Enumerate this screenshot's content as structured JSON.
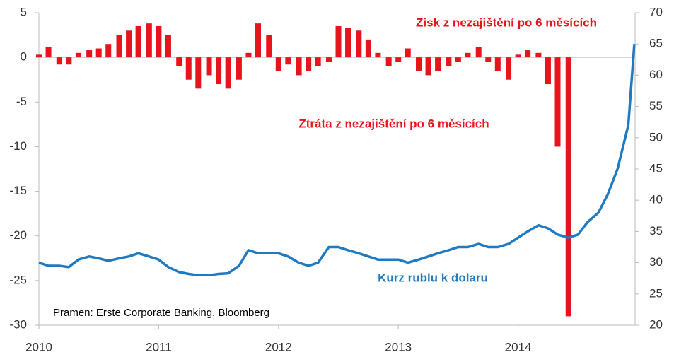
{
  "chart_data": {
    "type": "bar-line",
    "annotations": [
      "Zisk z nezajištění po 6 měsících",
      "Ztráta z nezajištění po 6 měsících",
      "Pramen: Erste Corporate Banking, Bloomberg"
    ],
    "x": [
      2010,
      2010.08,
      2010.17,
      2010.25,
      2010.33,
      2010.42,
      2010.5,
      2010.58,
      2010.67,
      2010.75,
      2010.83,
      2010.92,
      2011,
      2011.08,
      2011.17,
      2011.25,
      2011.33,
      2011.42,
      2011.5,
      2011.58,
      2011.67,
      2011.75,
      2011.83,
      2011.92,
      2012,
      2012.08,
      2012.17,
      2012.25,
      2012.33,
      2012.42,
      2012.5,
      2012.58,
      2012.67,
      2012.75,
      2012.83,
      2012.92,
      2013,
      2013.08,
      2013.17,
      2013.25,
      2013.33,
      2013.42,
      2013.5,
      2013.58,
      2013.67,
      2013.75,
      2013.83,
      2013.92,
      2014,
      2014.08,
      2014.17,
      2014.25,
      2014.33,
      2014.42,
      2014.5,
      2014.58,
      2014.67,
      2014.75,
      2014.83,
      2014.92,
      2014.97
    ],
    "series": [
      {
        "color": "#e8141b",
        "values": [
          0.3,
          1.2,
          -0.8,
          -0.8,
          0.5,
          0.8,
          1,
          1.5,
          2.5,
          3,
          3.5,
          3.8,
          3.5,
          2.5,
          -1,
          -2.5,
          -3.5,
          -2,
          -3,
          -3.5,
          -2.5,
          0.5,
          3.8,
          2.5,
          -1.5,
          -0.8,
          -2,
          -1.5,
          -1,
          -0.5,
          3.5,
          3.3,
          3,
          2,
          0.5,
          -1,
          -0.5,
          1,
          -1.5,
          -2,
          -1.5,
          -1,
          -0.5,
          0.5,
          1.2,
          -0.5,
          -1.5,
          -2.5,
          0.3,
          0.8,
          0.5,
          -3,
          -10,
          -29,
          null,
          null,
          null,
          null,
          null,
          null,
          null
        ]
      },
      {
        "name": "Kurz rublu k dolaru",
        "color": "#1f7bc1",
        "axis": "y2",
        "values": [
          30,
          29.5,
          29.5,
          29.3,
          30.5,
          31,
          30.7,
          30.3,
          30.7,
          31,
          31.5,
          31,
          30.5,
          29.3,
          28.5,
          28.2,
          28,
          28,
          28.2,
          28.3,
          29.5,
          32,
          31.5,
          31.5,
          31.5,
          31,
          30,
          29.5,
          30,
          32.5,
          32.5,
          32,
          31.5,
          31,
          30.5,
          30.5,
          30.5,
          30,
          30.5,
          31,
          31.5,
          32,
          32.5,
          32.5,
          33,
          32.5,
          32.5,
          33,
          34,
          35,
          36,
          35.5,
          34.5,
          34,
          34.5,
          36.5,
          38,
          41,
          45,
          52,
          65
        ]
      }
    ],
    "xlim": [
      2010,
      2015
    ],
    "xticks": [
      2010,
      2011,
      2012,
      2013,
      2014
    ],
    "ylim": [
      -30,
      5
    ],
    "yticks": [
      5,
      0,
      -5,
      -10,
      -15,
      -20,
      -25,
      -30
    ],
    "y2lim": [
      20,
      70
    ],
    "y2ticks": [
      70,
      65,
      60,
      55,
      50,
      45,
      40,
      35,
      30,
      25,
      20
    ]
  }
}
